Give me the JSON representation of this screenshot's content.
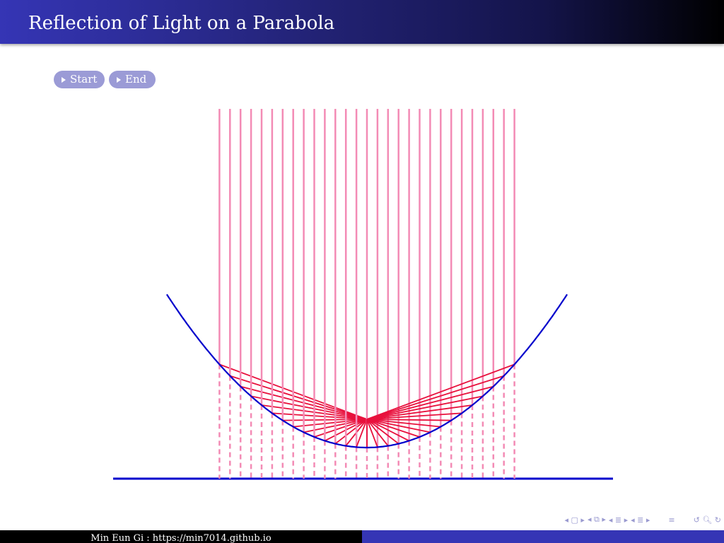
{
  "header": {
    "title": "Reflection of Light on a Parabola"
  },
  "controls": {
    "start_label": "Start",
    "end_label": "End"
  },
  "footer": {
    "author": "Min Eun Gi : https://min7014.github.io"
  },
  "nav": {
    "icons": [
      "first-icon",
      "frame-icon",
      "prev-frame-icon",
      "next-frame-icon",
      "section-icon",
      "subsection-icon",
      "toc-icon",
      "search-icon",
      "zoom-icon"
    ]
  },
  "diagram": {
    "rays_x_range": [
      -14,
      14
    ],
    "ray_count": 29,
    "parabola_x_range": [
      -19,
      19
    ],
    "colors": {
      "parabola": "#0000cc",
      "incoming": "#f38bb5",
      "reflected": "#e8103c",
      "baseline": "#0000cc"
    }
  }
}
